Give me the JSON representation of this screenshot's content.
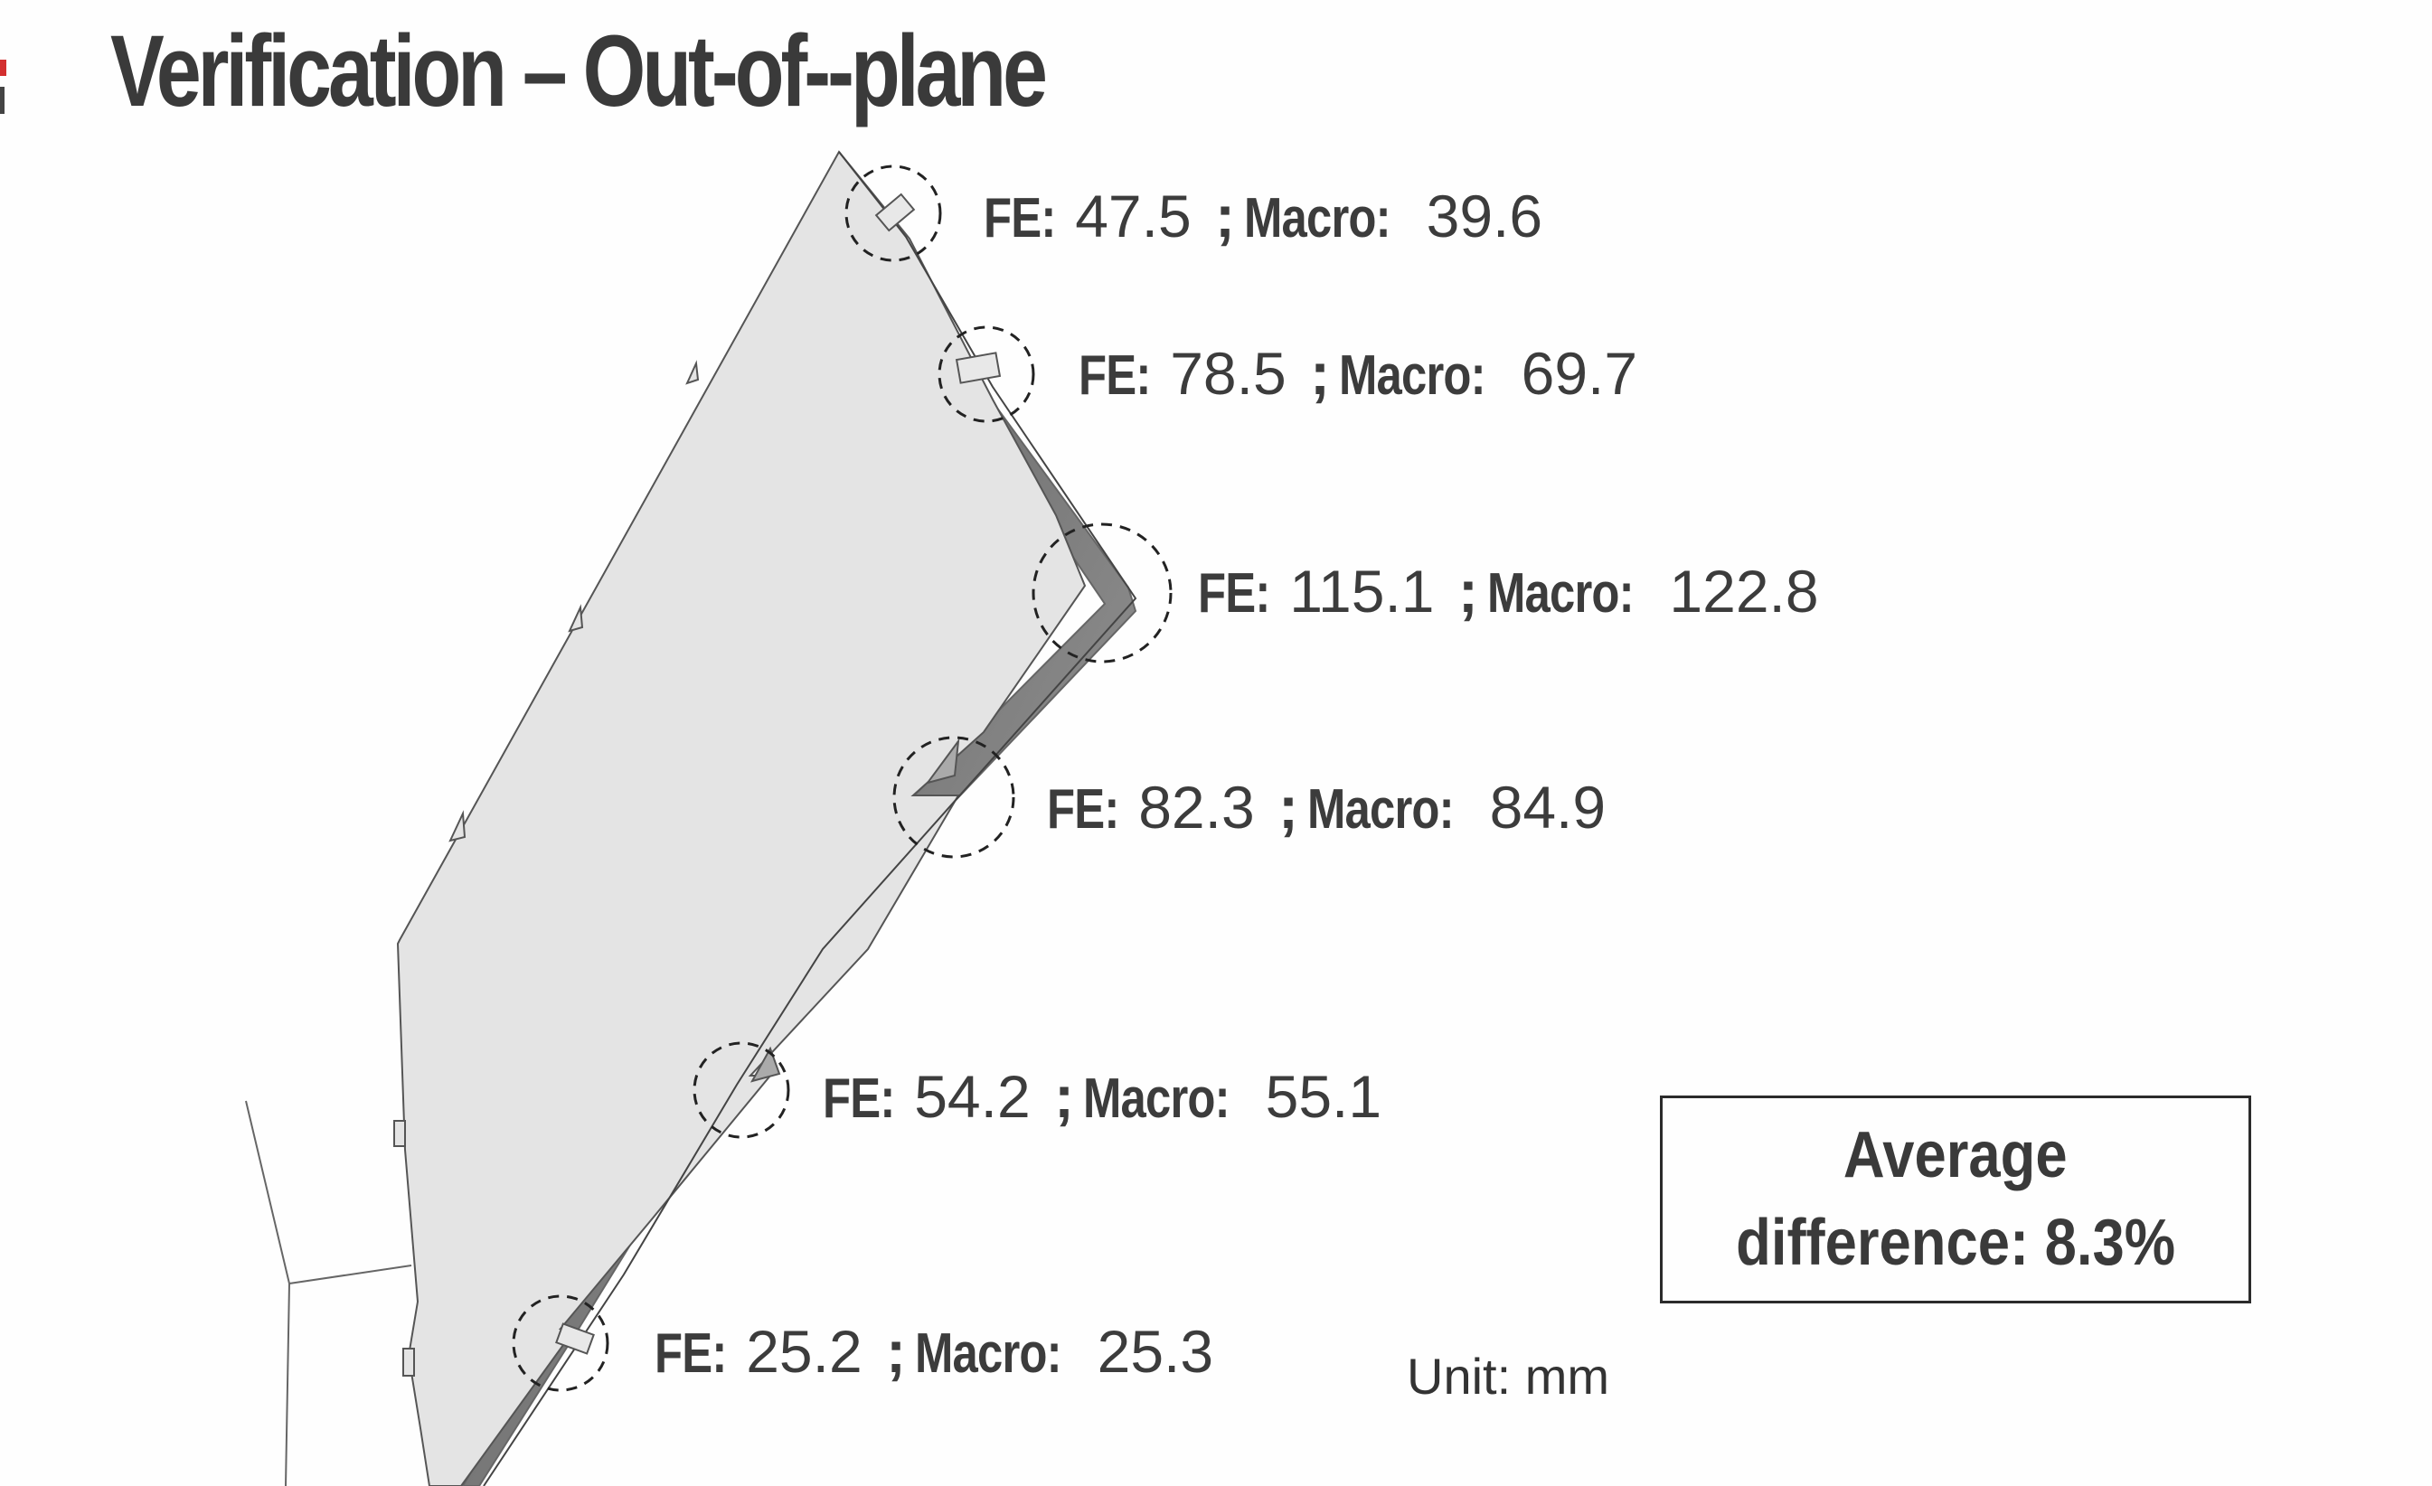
{
  "title": "Verification – Out-of--plane",
  "results": [
    {
      "fe_label": "FE:",
      "fe_value": "47.5",
      "sep": ";",
      "macro_label": "Macro:",
      "macro_value": "39.6"
    },
    {
      "fe_label": "FE:",
      "fe_value": "78.5",
      "sep": ";",
      "macro_label": "Macro:",
      "macro_value": "69.7"
    },
    {
      "fe_label": "FE:",
      "fe_value": "115.1",
      "sep": ";",
      "macro_label": "Macro:",
      "macro_value": "122.8"
    },
    {
      "fe_label": "FE:",
      "fe_value": "82.3",
      "sep": ";",
      "macro_label": "Macro:",
      "macro_value": "84.9"
    },
    {
      "fe_label": "FE:",
      "fe_value": "54.2",
      "sep": ";",
      "macro_label": "Macro:",
      "macro_value": "55.1"
    },
    {
      "fe_label": "FE:",
      "fe_value": "25.2",
      "sep": ";",
      "macro_label": "Macro:",
      "macro_value": "25.3"
    }
  ],
  "summary": {
    "line1": "Average",
    "line2": "difference: 8.3%"
  },
  "unit": "Unit: mm",
  "colors": {
    "wall_fill": "#e4e4e4",
    "deformed_shade": "#8a8a8a",
    "outline": "#555555",
    "accent": "#d32f2f"
  }
}
